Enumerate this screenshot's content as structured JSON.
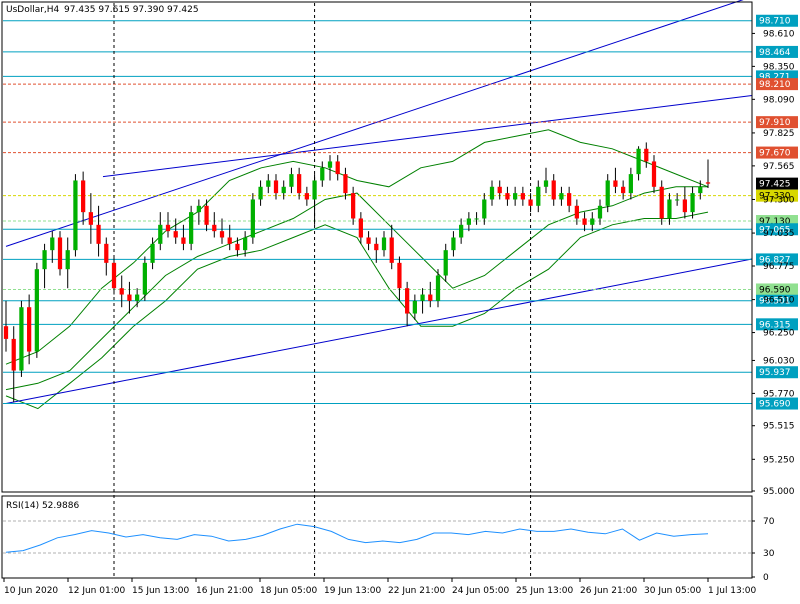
{
  "header": {
    "symbol_tf": "UsDollar,H4",
    "ohlc": "97.435 97.615 97.390 97.425"
  },
  "rsi_header": "RSI(14) 52.9886",
  "colors": {
    "bull": "#00b000",
    "bear": "#ff0000",
    "wick": "#000000",
    "bands": "#008000",
    "trend": "#0000cc",
    "rsi": "#1e90ff",
    "level_cyan": "#00a0c0",
    "level_red": "#e05030",
    "level_yellow": "#d8d800"
  },
  "chart_data": [
    {
      "type": "candlestick",
      "title": "UsDollar,H4",
      "ylim": [
        95.0,
        98.85
      ],
      "y_ticks": [
        "98.610",
        "98.350",
        "98.090",
        "97.825",
        "97.565",
        "97.300",
        "97.035",
        "96.775",
        "96.510",
        "96.250",
        "96.030",
        "95.770",
        "95.515",
        "95.250",
        "95.000"
      ],
      "x_ticks": [
        "10 Jun 2020",
        "12 Jun 01:00",
        "15 Jun 13:00",
        "16 Jun 21:00",
        "18 Jun 05:00",
        "19 Jun 13:00",
        "22 Jun 21:00",
        "24 Jun 05:00",
        "25 Jun 13:00",
        "26 Jun 21:00",
        "30 Jun 05:00",
        "1 Jul 13:00"
      ],
      "candles": [
        [
          96.3,
          96.5,
          96.1,
          96.2
        ],
        [
          96.2,
          96.3,
          95.7,
          95.95
        ],
        [
          95.95,
          96.5,
          95.9,
          96.45
        ],
        [
          96.45,
          96.55,
          96.0,
          96.1
        ],
        [
          96.1,
          96.8,
          96.05,
          96.75
        ],
        [
          96.75,
          96.95,
          96.6,
          96.9
        ],
        [
          96.9,
          97.05,
          96.8,
          97.0
        ],
        [
          97.0,
          97.05,
          96.7,
          96.75
        ],
        [
          96.75,
          97.0,
          96.6,
          96.9
        ],
        [
          96.9,
          97.5,
          96.85,
          97.45
        ],
        [
          97.45,
          97.52,
          97.1,
          97.2
        ],
        [
          97.2,
          97.35,
          96.95,
          97.1
        ],
        [
          97.1,
          97.25,
          96.85,
          96.95
        ],
        [
          96.95,
          97.0,
          96.7,
          96.8
        ],
        [
          96.8,
          96.85,
          96.55,
          96.6
        ],
        [
          96.6,
          96.7,
          96.45,
          96.55
        ],
        [
          96.55,
          96.65,
          96.4,
          96.5
        ],
        [
          96.5,
          96.6,
          96.45,
          96.55
        ],
        [
          96.55,
          96.85,
          96.5,
          96.8
        ],
        [
          96.8,
          97.0,
          96.75,
          96.95
        ],
        [
          96.95,
          97.2,
          96.9,
          97.1
        ],
        [
          97.1,
          97.2,
          97.0,
          97.05
        ],
        [
          97.05,
          97.15,
          96.95,
          97.0
        ],
        [
          97.0,
          97.1,
          96.9,
          96.95
        ],
        [
          96.95,
          97.25,
          96.9,
          97.2
        ],
        [
          97.2,
          97.3,
          97.1,
          97.25
        ],
        [
          97.25,
          97.3,
          97.05,
          97.1
        ],
        [
          97.1,
          97.2,
          97.0,
          97.05
        ],
        [
          97.05,
          97.15,
          96.95,
          97.0
        ],
        [
          97.0,
          97.1,
          96.9,
          96.95
        ],
        [
          96.95,
          97.0,
          96.85,
          96.9
        ],
        [
          96.9,
          97.05,
          96.85,
          97.0
        ],
        [
          97.0,
          97.35,
          96.95,
          97.3
        ],
        [
          97.3,
          97.45,
          97.25,
          97.4
        ],
        [
          97.4,
          97.5,
          97.35,
          97.45
        ],
        [
          97.45,
          97.5,
          97.3,
          97.35
        ],
        [
          97.35,
          97.45,
          97.3,
          97.4
        ],
        [
          97.4,
          97.55,
          97.35,
          97.5
        ],
        [
          97.5,
          97.55,
          97.3,
          97.35
        ],
        [
          97.35,
          97.4,
          97.25,
          97.3
        ],
        [
          97.3,
          97.5,
          97.1,
          97.45
        ],
        [
          97.45,
          97.6,
          97.4,
          97.55
        ],
        [
          97.55,
          97.65,
          97.45,
          97.6
        ],
        [
          97.6,
          97.65,
          97.45,
          97.5
        ],
        [
          97.5,
          97.55,
          97.3,
          97.35
        ],
        [
          97.35,
          97.4,
          97.1,
          97.15
        ],
        [
          97.15,
          97.2,
          96.95,
          97.0
        ],
        [
          97.0,
          97.05,
          96.9,
          96.95
        ],
        [
          96.95,
          97.0,
          96.8,
          96.9
        ],
        [
          96.9,
          97.05,
          96.85,
          97.0
        ],
        [
          97.0,
          97.1,
          96.75,
          96.8
        ],
        [
          96.8,
          96.85,
          96.5,
          96.6
        ],
        [
          96.6,
          96.65,
          96.3,
          96.4
        ],
        [
          96.4,
          96.55,
          96.35,
          96.5
        ],
        [
          96.5,
          96.6,
          96.4,
          96.55
        ],
        [
          96.55,
          96.65,
          96.45,
          96.5
        ],
        [
          96.5,
          96.75,
          96.45,
          96.7
        ],
        [
          96.7,
          96.95,
          96.65,
          96.9
        ],
        [
          96.9,
          97.05,
          96.85,
          97.0
        ],
        [
          97.0,
          97.15,
          96.95,
          97.1
        ],
        [
          97.1,
          97.2,
          97.05,
          97.15
        ],
        [
          97.15,
          97.2,
          97.1,
          97.15
        ],
        [
          97.15,
          97.35,
          97.1,
          97.3
        ],
        [
          97.3,
          97.45,
          97.25,
          97.4
        ],
        [
          97.4,
          97.45,
          97.3,
          97.35
        ],
        [
          97.35,
          97.4,
          97.25,
          97.3
        ],
        [
          97.3,
          97.4,
          97.25,
          97.35
        ],
        [
          97.35,
          97.4,
          97.25,
          97.3
        ],
        [
          97.3,
          97.35,
          97.2,
          97.25
        ],
        [
          97.25,
          97.45,
          97.2,
          97.4
        ],
        [
          97.4,
          97.55,
          97.35,
          97.45
        ],
        [
          97.45,
          97.5,
          97.25,
          97.3
        ],
        [
          97.3,
          97.4,
          97.25,
          97.35
        ],
        [
          97.35,
          97.4,
          97.2,
          97.25
        ],
        [
          97.25,
          97.3,
          97.1,
          97.15
        ],
        [
          97.15,
          97.2,
          97.05,
          97.1
        ],
        [
          97.1,
          97.2,
          97.05,
          97.15
        ],
        [
          97.15,
          97.3,
          97.1,
          97.25
        ],
        [
          97.25,
          97.5,
          97.2,
          97.45
        ],
        [
          97.45,
          97.55,
          97.35,
          97.4
        ],
        [
          97.4,
          97.45,
          97.3,
          97.35
        ],
        [
          97.35,
          97.55,
          97.3,
          97.5
        ],
        [
          97.5,
          97.72,
          97.45,
          97.7
        ],
        [
          97.7,
          97.75,
          97.55,
          97.6
        ],
        [
          97.6,
          97.65,
          97.35,
          97.4
        ],
        [
          97.4,
          97.45,
          97.1,
          97.15
        ],
        [
          97.15,
          97.35,
          97.1,
          97.3
        ],
        [
          97.3,
          97.35,
          97.25,
          97.3
        ],
        [
          97.3,
          97.4,
          97.15,
          97.2
        ],
        [
          97.2,
          97.4,
          97.15,
          97.35
        ],
        [
          97.35,
          97.45,
          97.3,
          97.4
        ],
        [
          97.435,
          97.615,
          97.39,
          97.425
        ]
      ],
      "price_labels": [
        {
          "value": 98.71,
          "label": "98.710",
          "kind": "cyan"
        },
        {
          "value": 98.464,
          "label": "98.464",
          "kind": "cyan"
        },
        {
          "value": 98.271,
          "label": "98.271",
          "kind": "cyan"
        },
        {
          "value": 98.21,
          "label": "98.210",
          "kind": "red"
        },
        {
          "value": 97.91,
          "label": "97.910",
          "kind": "red"
        },
        {
          "value": 97.67,
          "label": "97.670",
          "kind": "red"
        },
        {
          "value": 97.425,
          "label": "97.425",
          "kind": "current"
        },
        {
          "value": 97.33,
          "label": "97.330",
          "kind": "yellow"
        },
        {
          "value": 97.13,
          "label": "97.130",
          "kind": "green"
        },
        {
          "value": 97.065,
          "label": "97.065",
          "kind": "cyan"
        },
        {
          "value": 96.827,
          "label": "96.827",
          "kind": "cyan"
        },
        {
          "value": 96.59,
          "label": "96.590",
          "kind": "green"
        },
        {
          "value": 96.501,
          "label": "96.501",
          "kind": "cyan"
        },
        {
          "value": 96.315,
          "label": "96.315",
          "kind": "cyan"
        },
        {
          "value": 95.937,
          "label": "95.937",
          "kind": "cyan"
        },
        {
          "value": 95.69,
          "label": "95.690",
          "kind": "cyan"
        }
      ],
      "trendlines": [
        {
          "from": [
            0,
            96.93
          ],
          "to": [
            100,
            98.9
          ]
        },
        {
          "from": [
            13,
            97.48
          ],
          "to": [
            100,
            98.12
          ]
        },
        {
          "from": [
            0,
            95.69
          ],
          "to": [
            100,
            96.83
          ]
        }
      ],
      "bands": {
        "upper": [
          96.0,
          96.1,
          96.3,
          96.6,
          96.8,
          97.05,
          97.2,
          97.45,
          97.55,
          97.6,
          97.55,
          97.45,
          97.4,
          97.55,
          97.6,
          97.75,
          97.8,
          97.85,
          97.75,
          97.7,
          97.6,
          97.5,
          97.4
        ],
        "middle": [
          95.8,
          95.85,
          95.95,
          96.2,
          96.45,
          96.7,
          96.85,
          96.95,
          97.05,
          97.15,
          97.3,
          97.35,
          97.1,
          96.85,
          96.6,
          96.7,
          96.9,
          97.1,
          97.2,
          97.25,
          97.35,
          97.4,
          97.4
        ],
        "lower": [
          95.75,
          95.65,
          95.85,
          96.05,
          96.3,
          96.5,
          96.75,
          96.85,
          96.9,
          97.0,
          97.1,
          97.0,
          96.6,
          96.3,
          96.3,
          96.4,
          96.6,
          96.75,
          97.0,
          97.1,
          97.15,
          97.15,
          97.2
        ]
      },
      "vlines_at": [
        14,
        40,
        68
      ]
    },
    {
      "type": "line",
      "title": "RSI(14) 52.9886",
      "ylim": [
        0,
        100
      ],
      "y_ticks": [
        "70",
        "30",
        "0"
      ],
      "levels": [
        70,
        30
      ],
      "values": [
        31,
        33,
        40,
        49,
        53,
        58,
        55,
        50,
        53,
        49,
        47,
        53,
        51,
        45,
        47,
        52,
        60,
        66,
        63,
        57,
        47,
        43,
        45,
        43,
        47,
        55,
        55,
        53,
        57,
        55,
        60,
        57,
        57,
        60,
        56,
        54,
        60,
        46,
        55,
        51,
        53,
        54
      ]
    }
  ]
}
